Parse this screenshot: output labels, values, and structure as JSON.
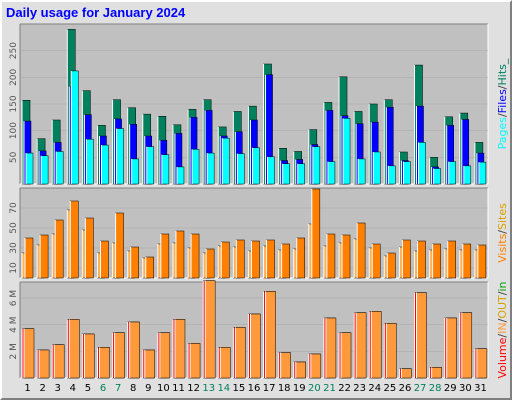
{
  "title": "Daily usage for January 2024",
  "colors": {
    "hits": "#00805c",
    "files": "#0000ff",
    "pages": "#00ffff",
    "visits": "#ff8000",
    "sites": "#ffb055",
    "kbin": "#ff0000",
    "kbout": "#ff9a3c",
    "weekday_label": "#000000",
    "weekend_label": "#00805c"
  },
  "chart_data": [
    {
      "type": "bar",
      "panel": "hits",
      "x": [
        1,
        2,
        3,
        4,
        5,
        6,
        7,
        8,
        9,
        10,
        11,
        12,
        13,
        14,
        15,
        16,
        17,
        18,
        19,
        20,
        21,
        22,
        23,
        24,
        25,
        26,
        27,
        28,
        29,
        30,
        31
      ],
      "weekend_days": [
        6,
        7,
        13,
        14,
        20,
        21,
        27,
        28
      ],
      "ylim": [
        0,
        300
      ],
      "yticks": [
        50,
        100,
        150,
        200,
        250
      ],
      "side_labels": [
        "Pages",
        "/",
        "Files",
        "/",
        "Hits",
        "_"
      ],
      "series": [
        {
          "name": "Hits",
          "values": [
            157,
            85,
            120,
            290,
            175,
            110,
            158,
            143,
            131,
            127,
            111,
            140,
            158,
            107,
            136,
            146,
            225,
            67,
            61,
            102,
            153,
            201,
            136,
            150,
            158,
            60,
            223,
            50,
            126,
            133,
            78
          ]
        },
        {
          "name": "Files",
          "values": [
            118,
            62,
            78,
            183,
            130,
            90,
            122,
            112,
            90,
            82,
            95,
            125,
            138,
            90,
            98,
            120,
            205,
            44,
            46,
            74,
            138,
            128,
            113,
            116,
            144,
            44,
            146,
            32,
            110,
            121,
            58
          ]
        },
        {
          "name": "Pages",
          "values": [
            58,
            53,
            61,
            212,
            84,
            73,
            104,
            47,
            70,
            55,
            32,
            65,
            58,
            86,
            57,
            68,
            51,
            38,
            38,
            70,
            42,
            123,
            47,
            60,
            34,
            42,
            78,
            29,
            42,
            34,
            41
          ]
        }
      ]
    },
    {
      "type": "bar",
      "panel": "visits",
      "x": [
        1,
        2,
        3,
        4,
        5,
        6,
        7,
        8,
        9,
        10,
        11,
        12,
        13,
        14,
        15,
        16,
        17,
        18,
        19,
        20,
        21,
        22,
        23,
        24,
        25,
        26,
        27,
        28,
        29,
        30,
        31
      ],
      "ylim": [
        0,
        90
      ],
      "yticks": [
        10,
        30,
        50,
        70
      ],
      "side_labels": [
        "Visits",
        "/",
        "Sites"
      ],
      "series": [
        {
          "name": "Visits",
          "values": [
            40,
            43,
            58,
            77,
            60,
            37,
            65,
            31,
            21,
            44,
            47,
            44,
            29,
            36,
            38,
            37,
            38,
            34,
            40,
            89,
            44,
            43,
            55,
            34,
            25,
            38,
            37,
            34,
            37,
            34,
            33
          ]
        },
        {
          "name": "Sites",
          "values": [
            25,
            33,
            44,
            68,
            48,
            25,
            35,
            27,
            20,
            34,
            35,
            30,
            25,
            32,
            31,
            27,
            32,
            28,
            29,
            54,
            32,
            35,
            39,
            30,
            22,
            31,
            27,
            28,
            29,
            28,
            28
          ]
        }
      ]
    },
    {
      "type": "bar",
      "panel": "volume",
      "x": [
        1,
        2,
        3,
        4,
        5,
        6,
        7,
        8,
        9,
        10,
        11,
        12,
        13,
        14,
        15,
        16,
        17,
        18,
        19,
        20,
        21,
        22,
        23,
        24,
        25,
        26,
        27,
        28,
        29,
        30,
        31
      ],
      "ylim": [
        0,
        7.2
      ],
      "yticks": [
        2,
        4,
        6
      ],
      "ytick_labels": [
        "2 M",
        "4 M",
        "6 M"
      ],
      "side_labels": [
        "Volume",
        "/",
        "IN",
        "/",
        "OUT",
        "/",
        "in"
      ],
      "series": [
        {
          "name": "in",
          "values": [
            3.7,
            2.1,
            2.5,
            4.4,
            3.3,
            2.3,
            3.4,
            4.2,
            2.1,
            3.4,
            4.4,
            2.6,
            7.3,
            2.3,
            3.8,
            4.8,
            6.5,
            1.9,
            1.2,
            1.8,
            4.5,
            3.4,
            4.9,
            5.0,
            4.1,
            0.7,
            6.4,
            0.8,
            4.5,
            4.9,
            2.2
          ]
        },
        {
          "name": "out",
          "values": [
            3.7,
            2.1,
            2.5,
            4.4,
            3.3,
            2.3,
            3.4,
            4.2,
            2.1,
            3.4,
            4.4,
            2.6,
            7.3,
            2.3,
            3.8,
            4.8,
            6.5,
            1.9,
            1.2,
            1.8,
            4.5,
            3.4,
            4.9,
            5.0,
            4.1,
            0.7,
            6.4,
            0.8,
            4.5,
            4.9,
            2.2
          ]
        }
      ]
    }
  ]
}
